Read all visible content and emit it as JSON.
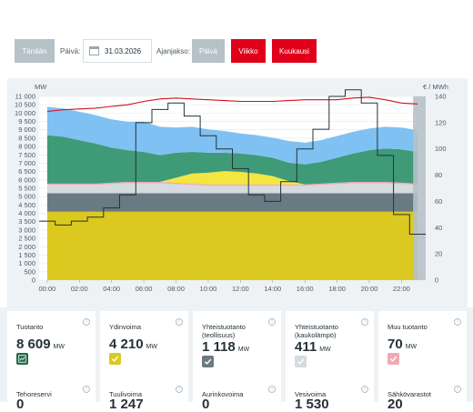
{
  "toolbar": {
    "today_label": "Tänään",
    "day_label": "Päivä:",
    "date_value": "31.03.2026",
    "period_label": "Ajanjakso:",
    "period_day": "Päivä",
    "period_week": "Viikko",
    "period_month": "Kuukausi"
  },
  "chart_data": {
    "type": "area",
    "left_axis": {
      "unit": "MW",
      "ylim": [
        0,
        11000
      ],
      "ticks": [
        "0",
        "500",
        "1 000",
        "1 500",
        "2 000",
        "2 500",
        "3 000",
        "3 500",
        "4 000",
        "4 500",
        "5 000",
        "5 500",
        "6 000",
        "6 500",
        "7 000",
        "7 500",
        "8 000",
        "8 500",
        "9 000",
        "9 500",
        "10 000",
        "10 500",
        "11 000"
      ]
    },
    "right_axis": {
      "unit": "€ / MWh",
      "ylim": [
        0,
        140
      ],
      "ticks": [
        "0",
        "20",
        "40",
        "60",
        "80",
        "100",
        "120",
        "140"
      ]
    },
    "x_ticks": [
      "00:00",
      "02:00",
      "04:00",
      "06:00",
      "08:00",
      "10:00",
      "12:00",
      "14:00",
      "16:00",
      "18:00",
      "20:00",
      "22:00"
    ],
    "hours": [
      0,
      1,
      2,
      3,
      4,
      5,
      6,
      7,
      8,
      9,
      10,
      11,
      12,
      13,
      14,
      15,
      16,
      17,
      18,
      19,
      20,
      21,
      22,
      23
    ],
    "series": [
      {
        "role": "nuclear",
        "color": "#dcc91f",
        "values": [
          4100,
          4100,
          4100,
          4100,
          4100,
          4100,
          4100,
          4100,
          4100,
          4100,
          4100,
          4100,
          4100,
          4100,
          4100,
          4100,
          4100,
          4100,
          4100,
          4100,
          4100,
          4100,
          4100,
          4100
        ]
      },
      {
        "role": "chp_industry",
        "color": "#6a7a84",
        "values": [
          1100,
          1100,
          1100,
          1100,
          1100,
          1100,
          1100,
          1100,
          1100,
          1100,
          1100,
          1100,
          1100,
          1100,
          1100,
          1100,
          1100,
          1100,
          1100,
          1100,
          1100,
          1100,
          1100,
          1100
        ]
      },
      {
        "role": "chp_district",
        "color": "#d5dbdf",
        "values": [
          500,
          500,
          500,
          500,
          550,
          600,
          600,
          600,
          550,
          500,
          450,
          450,
          450,
          450,
          450,
          450,
          450,
          500,
          550,
          600,
          600,
          600,
          550,
          500
        ]
      },
      {
        "role": "other",
        "color": "#f1a8b3",
        "values": [
          80,
          80,
          80,
          80,
          80,
          80,
          80,
          80,
          80,
          80,
          80,
          80,
          80,
          80,
          80,
          80,
          80,
          80,
          80,
          80,
          80,
          80,
          80,
          80
        ]
      },
      {
        "role": "solar",
        "color": "#f2e640",
        "values": [
          0,
          0,
          0,
          0,
          0,
          0,
          0,
          0,
          300,
          600,
          700,
          800,
          750,
          650,
          500,
          200,
          0,
          0,
          0,
          0,
          0,
          0,
          0,
          0
        ]
      },
      {
        "role": "hydro",
        "color": "#3f9a78",
        "values": [
          2900,
          2800,
          2600,
          2400,
          2100,
          1900,
          1800,
          1600,
          1500,
          1300,
          1200,
          1100,
          1100,
          1100,
          1100,
          1100,
          1200,
          1300,
          1500,
          1700,
          1900,
          2000,
          2000,
          1900
        ]
      },
      {
        "role": "wind",
        "color": "#7fc1f2",
        "values": [
          1700,
          1700,
          1700,
          1700,
          1700,
          1700,
          1800,
          1700,
          1500,
          1500,
          1400,
          1300,
          1200,
          1200,
          1200,
          1300,
          1300,
          1300,
          1300,
          1300,
          1300,
          1300,
          1300,
          1300
        ]
      }
    ],
    "consumption": {
      "color": "#d0101c",
      "values": [
        10100,
        10200,
        10250,
        10300,
        10400,
        10500,
        10700,
        10850,
        10900,
        10850,
        10800,
        10750,
        10700,
        10700,
        10700,
        10750,
        10800,
        10800,
        10800,
        10900,
        10950,
        10800,
        10600,
        10550
      ]
    },
    "price": {
      "color": "#253238",
      "values": [
        45,
        42,
        45,
        48,
        55,
        65,
        120,
        130,
        135,
        125,
        110,
        100,
        85,
        65,
        60,
        75,
        100,
        115,
        140,
        145,
        135,
        95,
        50,
        35
      ]
    },
    "forecast_from_hour": 23
  },
  "cards_row1": [
    {
      "title": "Tuotanto",
      "value": "8 609",
      "unit": "MW",
      "box_color": "#1f6b4c",
      "icon": "chart-icon"
    },
    {
      "title": "Ydinvoima",
      "value": "4 210",
      "unit": "MW",
      "box_color": "#dcc91f",
      "icon": "check-icon"
    },
    {
      "title": "Yhteistuotanto (teollisuus)",
      "value": "1 118",
      "unit": "MW",
      "box_color": "#6a7a84",
      "icon": "check-icon"
    },
    {
      "title": "Yhteistuotanto (kaukolämpö)",
      "value": "411",
      "unit": "MW",
      "box_color": "#d5dbdf",
      "icon": "check-icon"
    },
    {
      "title": "Muu tuotanto",
      "value": "70",
      "unit": "MW",
      "box_color": "#f1a8b3",
      "icon": "check-icon"
    }
  ],
  "cards_row2": [
    {
      "title": "Tehoreservi",
      "value": "0"
    },
    {
      "title": "Tuulivoima",
      "value": "1 247"
    },
    {
      "title": "Aurinkovoima",
      "value": "0"
    },
    {
      "title": "Vesivoima",
      "value": "1 530"
    },
    {
      "title": "Sähkövarastot",
      "value": "20"
    }
  ]
}
